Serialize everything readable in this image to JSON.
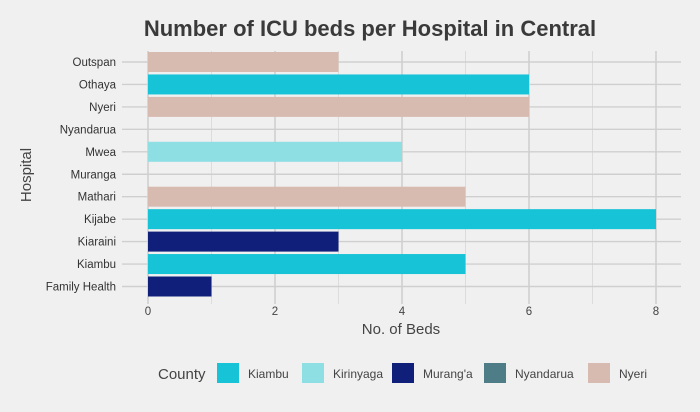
{
  "chart_data": {
    "type": "bar",
    "orientation": "horizontal",
    "title": "Number of ICU beds per Hospital in Central",
    "xlabel": "No. of Beds",
    "ylabel": "Hospital",
    "xlim": [
      0,
      8.4
    ],
    "xticks": [
      0,
      2,
      4,
      6,
      8
    ],
    "grid": true,
    "legend_position": "bottom",
    "legend_title": "County",
    "categories": [
      "Outspan",
      "Othaya",
      "Nyeri",
      "Nyandarua",
      "Mwea",
      "Muranga",
      "Mathari",
      "Kijabe",
      "Kiaraini",
      "Kiambu",
      "Family Health"
    ],
    "values": [
      3,
      6,
      6,
      0,
      4,
      0,
      5,
      8,
      3,
      5,
      1
    ],
    "county": [
      "Nyeri",
      "Kiambu",
      "Nyeri",
      "Nyandarua",
      "Kirinyaga",
      "Murang'a",
      "Nyeri",
      "Kiambu",
      "Murang'a",
      "Kiambu",
      "Murang'a"
    ],
    "series": [
      {
        "name": "Kiambu",
        "color": "#17c3d6"
      },
      {
        "name": "Kirinyaga",
        "color": "#8ddfe3"
      },
      {
        "name": "Murang'a",
        "color": "#101f7a"
      },
      {
        "name": "Nyandarua",
        "color": "#4f7d87"
      },
      {
        "name": "Nyeri",
        "color": "#d8bbb0"
      }
    ]
  }
}
